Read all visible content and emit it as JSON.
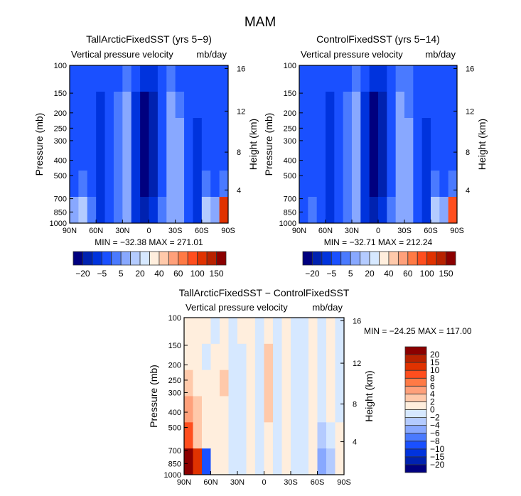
{
  "chart_data": {
    "type": "heatmap",
    "title": "MAM",
    "x_ticks": [
      "90N",
      "60N",
      "30N",
      "0",
      "30S",
      "60S",
      "90S"
    ],
    "y_ticks": [
      100,
      150,
      200,
      250,
      300,
      400,
      500,
      700,
      850,
      1000
    ],
    "y2_ticks": [
      4,
      8,
      12,
      16
    ],
    "ylabel": "Pressure (mb)",
    "y2label": "Height (km)",
    "lat_centers": [
      "85N",
      "75N",
      "65N",
      "55N",
      "45N",
      "35N",
      "25N",
      "15N",
      "5N",
      "5S",
      "15S",
      "25S",
      "35S",
      "45S",
      "55S",
      "65S",
      "75S",
      "85S"
    ],
    "p_rows": [
      "100-150",
      "150-250",
      "250-400",
      "400-600",
      "600-850",
      "850-1000"
    ],
    "panels": [
      {
        "title": "TallArcticFixedSST (yrs 5−9)",
        "subtitle_left": "Vertical pressure velocity",
        "subtitle_right": "mb/day",
        "stats": "MIN = −32.38   MAX = 271.01",
        "colorbar_labels": [
          "−20",
          "−5",
          "5",
          "20",
          "40",
          "60",
          "100",
          "150"
        ],
        "levels": [
          -20,
          -10,
          -5,
          -2,
          5,
          10,
          20,
          30,
          40,
          50,
          60,
          80,
          100,
          120,
          150
        ],
        "values": [
          [
            -3,
            -3,
            -3,
            -3,
            -3,
            -3,
            0,
            -3,
            -7,
            -7,
            -3,
            0,
            -3,
            -3,
            -3,
            -3,
            -3,
            -3
          ],
          [
            -3,
            -3,
            -3,
            -7,
            -3,
            0,
            7,
            -7,
            -25,
            -15,
            -3,
            7,
            0,
            -3,
            -3,
            -3,
            -3,
            -3
          ],
          [
            -3,
            -3,
            -3,
            -7,
            -3,
            0,
            7,
            -7,
            -25,
            -15,
            -3,
            7,
            7,
            -3,
            -7,
            -3,
            -3,
            -3
          ],
          [
            -3,
            -3,
            -3,
            -7,
            -3,
            0,
            7,
            -7,
            -25,
            -15,
            -3,
            7,
            7,
            -3,
            -7,
            -3,
            -3,
            -3
          ],
          [
            -3,
            0,
            -3,
            -7,
            -3,
            0,
            7,
            -7,
            -25,
            -15,
            -3,
            7,
            7,
            -3,
            -7,
            0,
            -3,
            0
          ],
          [
            7,
            15,
            0,
            -7,
            -3,
            0,
            7,
            -7,
            -15,
            -7,
            0,
            7,
            7,
            -3,
            -7,
            15,
            7,
            100
          ]
        ]
      },
      {
        "title": "ControlFixedSST (yrs 5−14)",
        "subtitle_left": "Vertical pressure velocity",
        "subtitle_right": "mb/day",
        "stats": "MIN = −32.71   MAX = 212.24",
        "colorbar_labels": [
          "−20",
          "−5",
          "5",
          "20",
          "40",
          "60",
          "100",
          "150"
        ],
        "levels": [
          -20,
          -10,
          -5,
          -2,
          5,
          10,
          20,
          30,
          40,
          50,
          60,
          80,
          100,
          120,
          150
        ],
        "values": [
          [
            -3,
            -3,
            -3,
            -3,
            -3,
            -3,
            0,
            -3,
            -7,
            -7,
            -3,
            0,
            0,
            -3,
            -3,
            -3,
            -3,
            -3
          ],
          [
            -3,
            -3,
            -3,
            -7,
            -3,
            0,
            7,
            -7,
            -25,
            -15,
            -3,
            7,
            0,
            -3,
            -3,
            -3,
            -3,
            -3
          ],
          [
            -3,
            -3,
            -3,
            -7,
            -3,
            0,
            7,
            -7,
            -25,
            -15,
            -3,
            7,
            7,
            -3,
            -7,
            -3,
            -3,
            -3
          ],
          [
            -3,
            -3,
            -3,
            -7,
            -3,
            0,
            7,
            -7,
            -25,
            -15,
            -3,
            7,
            7,
            -3,
            -7,
            -3,
            -3,
            -3
          ],
          [
            -3,
            -3,
            -3,
            -7,
            -3,
            0,
            7,
            -7,
            -25,
            -15,
            -3,
            7,
            7,
            -3,
            -7,
            0,
            -3,
            0
          ],
          [
            -3,
            0,
            -3,
            -7,
            -3,
            0,
            7,
            -7,
            -15,
            -7,
            0,
            7,
            7,
            -3,
            -7,
            15,
            7,
            80
          ]
        ]
      },
      {
        "title": "TallArcticFixedSST − ControlFixedSST",
        "subtitle_left": "Vertical pressure velocity",
        "subtitle_right": "mb/day",
        "stats": "MIN = −24.25   MAX = 117.00",
        "colorbar_labels": [
          "20",
          "15",
          "10",
          "8",
          "6",
          "4",
          "2",
          "0",
          "−2",
          "−4",
          "−6",
          "−8",
          "−10",
          "−15",
          "−20"
        ],
        "levels": [
          -20,
          -15,
          -10,
          -8,
          -6,
          -4,
          -2,
          0,
          2,
          4,
          6,
          8,
          10,
          15,
          20
        ],
        "values": [
          [
            1,
            1,
            1,
            -1,
            1,
            -1,
            1,
            1,
            -1,
            1,
            -1,
            1,
            -1,
            -1,
            1,
            -1,
            1,
            -1
          ],
          [
            1,
            1,
            -1,
            1,
            1,
            -1,
            -1,
            1,
            -1,
            3,
            -1,
            1,
            -1,
            -1,
            1,
            -1,
            1,
            -1
          ],
          [
            3,
            1,
            1,
            1,
            3,
            -1,
            -1,
            1,
            -1,
            3,
            -1,
            1,
            -1,
            -1,
            1,
            -1,
            1,
            -1
          ],
          [
            5,
            3,
            1,
            1,
            1,
            -1,
            -1,
            1,
            -1,
            3,
            -1,
            1,
            -1,
            -1,
            1,
            -1,
            1,
            -1
          ],
          [
            9,
            3,
            1,
            1,
            1,
            -1,
            -1,
            1,
            -1,
            1,
            -1,
            1,
            -1,
            -1,
            1,
            -3,
            -1,
            1
          ],
          [
            25,
            12,
            -9,
            1,
            1,
            -1,
            -1,
            1,
            -1,
            1,
            -1,
            1,
            -1,
            -1,
            1,
            -5,
            -3,
            1
          ]
        ]
      }
    ],
    "colors": [
      "#00007f",
      "#0022b0",
      "#0033dd",
      "#1a50ff",
      "#4a7aff",
      "#88a8ff",
      "#b4cbff",
      "#d6e8ff",
      "#ffeedd",
      "#ffc9aa",
      "#ffa07a",
      "#ff7a45",
      "#ff4e1e",
      "#e03200",
      "#b82200",
      "#8b0000"
    ]
  }
}
